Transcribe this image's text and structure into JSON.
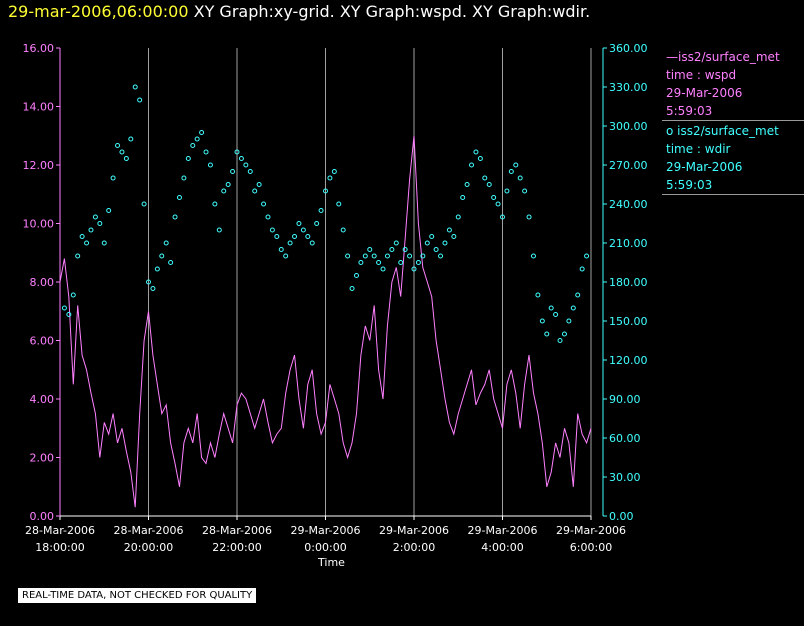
{
  "header": {
    "timestamp": "29-mar-2006,06:00:00",
    "graphs": " XY Graph:xy-grid.  XY Graph:wspd.  XY Graph:wdir."
  },
  "legend": {
    "wspd": {
      "line1": "—iss2/surface_met",
      "line2": "time : wspd",
      "line3": "29-Mar-2006",
      "line4": "5:59:03"
    },
    "wdir": {
      "line1": "o iss2/surface_met",
      "line2": "time : wdir",
      "line3": "29-Mar-2006",
      "line4": "5:59:03"
    }
  },
  "disclaimer": "REAL-TIME DATA, NOT CHECKED FOR QUALITY",
  "colors": {
    "wspd": "#ff80ff",
    "wdir": "#40ffff",
    "grid": "#a0a0a0",
    "axis": "#ffffff"
  },
  "chart_data": {
    "type": "line",
    "xlabel": "Time",
    "x_ticks": [
      {
        "hour": -12,
        "date": "28-Mar-2006",
        "time": "18:00:00"
      },
      {
        "hour": -10,
        "date": "28-Mar-2006",
        "time": "20:00:00"
      },
      {
        "hour": -8,
        "date": "28-Mar-2006",
        "time": "22:00:00"
      },
      {
        "hour": -6,
        "date": "29-Mar-2006",
        "time": "0:00:00"
      },
      {
        "hour": -4,
        "date": "29-Mar-2006",
        "time": "2:00:00"
      },
      {
        "hour": -2,
        "date": "29-Mar-2006",
        "time": "4:00:00"
      },
      {
        "hour": 0,
        "date": "29-Mar-2006",
        "time": "6:00:00"
      }
    ],
    "xlim_hours": [
      -12,
      0
    ],
    "grid": "vertical",
    "left_axis": {
      "ylim": [
        0,
        16
      ],
      "ticks": [
        "0.00",
        "2.00",
        "4.00",
        "6.00",
        "8.00",
        "10.00",
        "12.00",
        "14.00",
        "16.00"
      ]
    },
    "right_axis": {
      "ylim": [
        0,
        360
      ],
      "ticks": [
        "0.00",
        "30.00",
        "60.00",
        "90.00",
        "120.00",
        "150.00",
        "180.00",
        "210.00",
        "240.00",
        "270.00",
        "300.00",
        "330.00",
        "360.00"
      ]
    },
    "series": [
      {
        "name": "iss2/surface_met time : wspd",
        "axis": "left",
        "style": "line",
        "x_hours": [
          -12,
          -11.9,
          -11.8,
          -11.7,
          -11.6,
          -11.5,
          -11.4,
          -11.3,
          -11.2,
          -11.1,
          -11,
          -10.9,
          -10.8,
          -10.7,
          -10.6,
          -10.5,
          -10.4,
          -10.3,
          -10.2,
          -10.1,
          -10,
          -9.9,
          -9.8,
          -9.7,
          -9.6,
          -9.5,
          -9.4,
          -9.3,
          -9.2,
          -9.1,
          -9,
          -8.9,
          -8.8,
          -8.7,
          -8.6,
          -8.5,
          -8.4,
          -8.3,
          -8.2,
          -8.1,
          -8,
          -7.9,
          -7.8,
          -7.7,
          -7.6,
          -7.5,
          -7.4,
          -7.3,
          -7.2,
          -7.1,
          -7,
          -6.9,
          -6.8,
          -6.7,
          -6.6,
          -6.5,
          -6.4,
          -6.3,
          -6.2,
          -6.1,
          -6,
          -5.9,
          -5.8,
          -5.7,
          -5.6,
          -5.5,
          -5.4,
          -5.3,
          -5.2,
          -5.1,
          -5,
          -4.9,
          -4.8,
          -4.7,
          -4.6,
          -4.5,
          -4.4,
          -4.3,
          -4.2,
          -4.1,
          -4,
          -3.9,
          -3.8,
          -3.7,
          -3.6,
          -3.5,
          -3.4,
          -3.3,
          -3.2,
          -3.1,
          -3,
          -2.9,
          -2.8,
          -2.7,
          -2.6,
          -2.5,
          -2.4,
          -2.3,
          -2.2,
          -2.1,
          -2,
          -1.9,
          -1.8,
          -1.7,
          -1.6,
          -1.5,
          -1.4,
          -1.3,
          -1.2,
          -1.1,
          -1,
          -0.9,
          -0.8,
          -0.7,
          -0.6,
          -0.5,
          -0.4,
          -0.3,
          -0.2,
          -0.1,
          0
        ],
        "values": [
          8.0,
          8.8,
          7.5,
          4.5,
          7.2,
          5.5,
          5.0,
          4.2,
          3.5,
          2.0,
          3.2,
          2.8,
          3.5,
          2.5,
          3.0,
          2.2,
          1.5,
          0.3,
          3.5,
          6.0,
          7.0,
          5.5,
          4.5,
          3.5,
          3.8,
          2.5,
          1.8,
          1.0,
          2.5,
          3.0,
          2.5,
          3.5,
          2.0,
          1.8,
          2.5,
          2.0,
          2.8,
          3.5,
          3.0,
          2.5,
          3.8,
          4.2,
          4.0,
          3.5,
          3.0,
          3.5,
          4.0,
          3.2,
          2.5,
          2.8,
          3.0,
          4.2,
          5.0,
          5.5,
          4.0,
          3.0,
          4.5,
          5.0,
          3.5,
          2.8,
          3.2,
          4.5,
          4.0,
          3.5,
          2.5,
          2.0,
          2.5,
          3.5,
          5.5,
          6.5,
          6.0,
          7.2,
          5.0,
          4.0,
          6.5,
          8.0,
          8.5,
          7.5,
          9.5,
          11.5,
          13.0,
          10.0,
          8.5,
          8.0,
          7.5,
          6.0,
          5.0,
          4.0,
          3.2,
          2.8,
          3.5,
          4.0,
          4.5,
          5.0,
          3.8,
          4.2,
          4.5,
          5.0,
          4.0,
          3.5,
          3.0,
          4.5,
          5.0,
          4.2,
          3.0,
          4.5,
          5.5,
          4.2,
          3.5,
          2.5,
          1.0,
          1.5,
          2.5,
          2.0,
          3.0,
          2.5,
          1.0,
          3.5,
          2.8,
          2.5,
          3.0
        ]
      },
      {
        "name": "iss2/surface_met time : wdir",
        "axis": "right",
        "style": "scatter",
        "x_hours": [
          -11.9,
          -11.8,
          -11.7,
          -11.6,
          -11.5,
          -11.4,
          -11.3,
          -11.2,
          -11.1,
          -11,
          -10.9,
          -10.8,
          -10.7,
          -10.6,
          -10.5,
          -10.4,
          -10.3,
          -10.2,
          -10.1,
          -10,
          -9.9,
          -9.8,
          -9.7,
          -9.6,
          -9.5,
          -9.4,
          -9.3,
          -9.2,
          -9.1,
          -9,
          -8.9,
          -8.8,
          -8.7,
          -8.6,
          -8.5,
          -8.4,
          -8.3,
          -8.2,
          -8.1,
          -8,
          -7.9,
          -7.8,
          -7.7,
          -7.6,
          -7.5,
          -7.4,
          -7.3,
          -7.2,
          -7.1,
          -7,
          -6.9,
          -6.8,
          -6.7,
          -6.6,
          -6.5,
          -6.4,
          -6.3,
          -6.2,
          -6.1,
          -6,
          -5.9,
          -5.8,
          -5.7,
          -5.6,
          -5.5,
          -5.4,
          -5.3,
          -5.2,
          -5.1,
          -5,
          -4.9,
          -4.8,
          -4.7,
          -4.6,
          -4.5,
          -4.4,
          -4.3,
          -4.2,
          -4.1,
          -4,
          -3.9,
          -3.8,
          -3.7,
          -3.6,
          -3.5,
          -3.4,
          -3.3,
          -3.2,
          -3.1,
          -3,
          -2.9,
          -2.8,
          -2.7,
          -2.6,
          -2.5,
          -2.4,
          -2.3,
          -2.2,
          -2.1,
          -2,
          -1.9,
          -1.8,
          -1.7,
          -1.6,
          -1.5,
          -1.4,
          -1.3,
          -1.2,
          -1.1,
          -1,
          -0.9,
          -0.8,
          -0.7,
          -0.6,
          -0.5,
          -0.4,
          -0.3,
          -0.2,
          -0.1
        ],
        "values": [
          160,
          155,
          170,
          200,
          215,
          210,
          220,
          230,
          225,
          210,
          235,
          260,
          285,
          280,
          275,
          290,
          330,
          320,
          240,
          180,
          175,
          190,
          200,
          210,
          195,
          230,
          245,
          260,
          275,
          285,
          290,
          295,
          280,
          270,
          240,
          220,
          250,
          255,
          265,
          280,
          275,
          270,
          265,
          250,
          255,
          240,
          230,
          220,
          215,
          205,
          200,
          210,
          215,
          225,
          220,
          215,
          210,
          225,
          235,
          250,
          260,
          265,
          240,
          220,
          200,
          175,
          185,
          195,
          200,
          205,
          200,
          195,
          190,
          200,
          205,
          210,
          195,
          205,
          200,
          190,
          195,
          200,
          210,
          215,
          205,
          200,
          210,
          220,
          215,
          230,
          245,
          255,
          270,
          280,
          275,
          260,
          255,
          245,
          240,
          230,
          250,
          265,
          270,
          260,
          250,
          230,
          200,
          170,
          150,
          140,
          160,
          155,
          135,
          140,
          150,
          160,
          170,
          190,
          200
        ]
      }
    ]
  }
}
